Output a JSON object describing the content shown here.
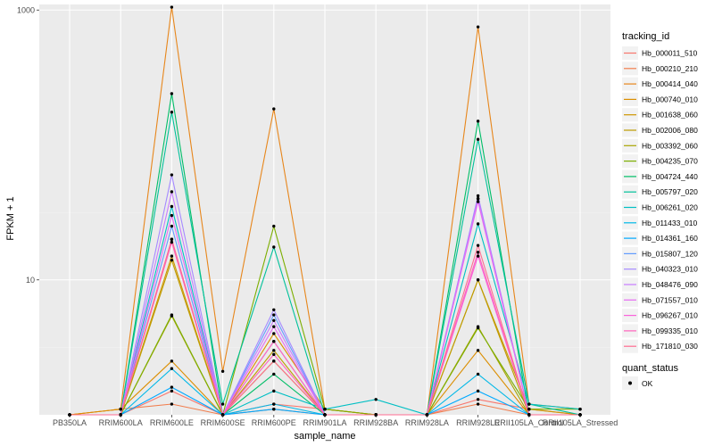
{
  "chart_data": {
    "type": "line",
    "xlabel": "sample_name",
    "ylabel": "FPKM + 1",
    "y_scale": "log10",
    "ylim": [
      1,
      1100
    ],
    "y_ticks": [
      10,
      1000
    ],
    "y_tick_labels": [
      "10",
      "1000"
    ],
    "grid": true,
    "categories": [
      "PB350LA",
      "RRIM600LA",
      "RRIM600LE",
      "RRIM600SE",
      "RRIM600PE",
      "RRIM901LA",
      "RRIM928BA",
      "RRIM928LA",
      "RRIM928LE",
      "RRII105LA_Control",
      "RRII105LA_Stressed"
    ],
    "series": [
      {
        "name": "Hb_000011_510",
        "color": "#F8766D",
        "values": [
          1,
          1,
          1.5,
          1,
          1.2,
          1.1,
          1,
          1,
          1.3,
          1.1,
          1
        ]
      },
      {
        "name": "Hb_000210_210",
        "color": "#F17D4D",
        "values": [
          1,
          1.1,
          1.2,
          1,
          1.1,
          1,
          1,
          1,
          1.2,
          1,
          1
        ]
      },
      {
        "name": "Hb_000414_040",
        "color": "#E7861B",
        "values": [
          1,
          1.1,
          1050,
          2.1,
          185,
          1.1,
          1,
          1,
          750,
          1.2,
          1.1
        ]
      },
      {
        "name": "Hb_000740_010",
        "color": "#DB8E00",
        "values": [
          1,
          1.1,
          2.5,
          1,
          4,
          1.1,
          1,
          1,
          3,
          1,
          1
        ]
      },
      {
        "name": "Hb_001638_060",
        "color": "#CD9600",
        "values": [
          1,
          1,
          15,
          1,
          3.5,
          1,
          1,
          1,
          10,
          1.1,
          1
        ]
      },
      {
        "name": "Hb_002006_080",
        "color": "#BE9C00",
        "values": [
          1,
          1,
          14,
          1,
          3,
          1,
          1,
          1,
          10,
          1,
          1
        ]
      },
      {
        "name": "Hb_003392_060",
        "color": "#A8A400",
        "values": [
          1,
          1,
          5.4,
          1,
          2.5,
          1,
          1,
          1,
          4.5,
          1,
          1
        ]
      },
      {
        "name": "Hb_004235_070",
        "color": "#7CAE00",
        "values": [
          1,
          1,
          5.5,
          1,
          25,
          1.1,
          1,
          1,
          4.4,
          1.1,
          1.1
        ]
      },
      {
        "name": "Hb_004724_440",
        "color": "#00BE67",
        "values": [
          1,
          1,
          240,
          1,
          2,
          1,
          1,
          1,
          150,
          1,
          1
        ]
      },
      {
        "name": "Hb_005797_020",
        "color": "#00C19A",
        "values": [
          1,
          1,
          175,
          1.2,
          17.5,
          1,
          1,
          1,
          110,
          1.2,
          1
        ]
      },
      {
        "name": "Hb_006261_020",
        "color": "#00BFC4",
        "values": [
          1,
          1,
          35,
          1,
          1.5,
          1.1,
          1.3,
          1,
          26,
          1.2,
          1.1
        ]
      },
      {
        "name": "Hb_011433_010",
        "color": "#00B8E7",
        "values": [
          1,
          1,
          2.2,
          1,
          1.2,
          1,
          1,
          1,
          2,
          1,
          1
        ]
      },
      {
        "name": "Hb_014361_160",
        "color": "#00A9FF",
        "values": [
          1,
          1,
          1.6,
          1,
          1.1,
          1,
          1,
          1,
          1.5,
          1,
          1
        ]
      },
      {
        "name": "Hb_015807_120",
        "color": "#619CFF",
        "values": [
          1,
          1,
          25,
          1,
          5.5,
          1,
          1,
          1,
          40,
          1,
          1
        ]
      },
      {
        "name": "Hb_040323_010",
        "color": "#A58AFF",
        "values": [
          1,
          1,
          60,
          1,
          6,
          1,
          1,
          1,
          42,
          1,
          1
        ]
      },
      {
        "name": "Hb_048476_090",
        "color": "#C77CFF",
        "values": [
          1,
          1,
          45,
          1,
          5,
          1,
          1,
          1,
          40,
          1,
          1
        ]
      },
      {
        "name": "Hb_071557_010",
        "color": "#E76BF3",
        "values": [
          1,
          1,
          30,
          1,
          4.5,
          1,
          1,
          1,
          38,
          1,
          1
        ]
      },
      {
        "name": "Hb_096267_010",
        "color": "#FA62DB",
        "values": [
          1,
          1,
          20,
          1,
          3.5,
          1,
          1,
          1,
          15,
          1,
          1
        ]
      },
      {
        "name": "Hb_099335_010",
        "color": "#FF62BC",
        "values": [
          1,
          1,
          19,
          1,
          2.8,
          1,
          1,
          1,
          16,
          1,
          1
        ]
      },
      {
        "name": "Hb_171810_030",
        "color": "#FF6C91",
        "values": [
          1,
          1,
          20,
          1,
          2.5,
          1,
          1,
          1,
          18,
          1,
          1
        ]
      }
    ]
  },
  "legend": {
    "title": "tracking_id",
    "status_title": "quant_status",
    "status_label": "OK"
  },
  "colors": {
    "panel_background": "#EBEBEB",
    "grid_major": "#FFFFFF",
    "point": "#000000"
  }
}
